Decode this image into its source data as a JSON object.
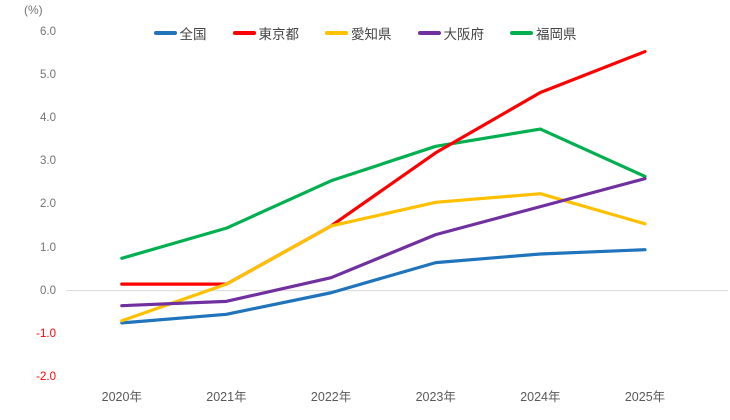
{
  "chart_data": {
    "type": "line",
    "unit_label": "(%)",
    "x_categories": [
      "2020年",
      "2021年",
      "2022年",
      "2023年",
      "2024年",
      "2025年"
    ],
    "ylim": [
      -2.0,
      6.0
    ],
    "ytick_step": 1.0,
    "yticks": [
      {
        "value": 6,
        "label": "6.0"
      },
      {
        "value": 5,
        "label": "5.0"
      },
      {
        "value": 4,
        "label": "4.0"
      },
      {
        "value": 3,
        "label": "3.0"
      },
      {
        "value": 2,
        "label": "2.0"
      },
      {
        "value": 1,
        "label": "1.0"
      },
      {
        "value": 0,
        "label": "0.0"
      },
      {
        "value": -1,
        "label": "-1.0"
      },
      {
        "value": -2,
        "label": "-2.0"
      }
    ],
    "grid": "horizontal line at zero only",
    "legend_position": "top-center",
    "series": [
      {
        "name": "全国",
        "color": "#1F74BC",
        "values": [
          -0.75,
          -0.55,
          -0.05,
          0.65,
          0.85,
          0.95
        ]
      },
      {
        "name": "東京都",
        "color": "#FF0000",
        "values": [
          0.15,
          0.15,
          1.5,
          3.2,
          4.6,
          5.55
        ]
      },
      {
        "name": "愛知県",
        "color": "#FFC000",
        "values": [
          -0.7,
          0.15,
          1.5,
          2.05,
          2.25,
          1.55
        ]
      },
      {
        "name": "大阪府",
        "color": "#7030A0",
        "values": [
          -0.35,
          -0.25,
          0.3,
          1.3,
          1.95,
          2.6
        ]
      },
      {
        "name": "福岡県",
        "color": "#00B050",
        "values": [
          0.75,
          1.45,
          2.55,
          3.35,
          3.75,
          2.65
        ]
      }
    ],
    "draw_order_series_indexes": [
      0,
      4,
      1,
      2,
      3
    ],
    "series_slugs": [
      "zenkoku",
      "tokyo",
      "aichi",
      "osaka",
      "fukuoka"
    ],
    "style": {
      "zero_line_color": "#D9D9D9",
      "ytick_color": "#737373",
      "ytick_negative_color": "#FF0000",
      "xtick_color": "#595959",
      "line_width": 3.2
    }
  }
}
